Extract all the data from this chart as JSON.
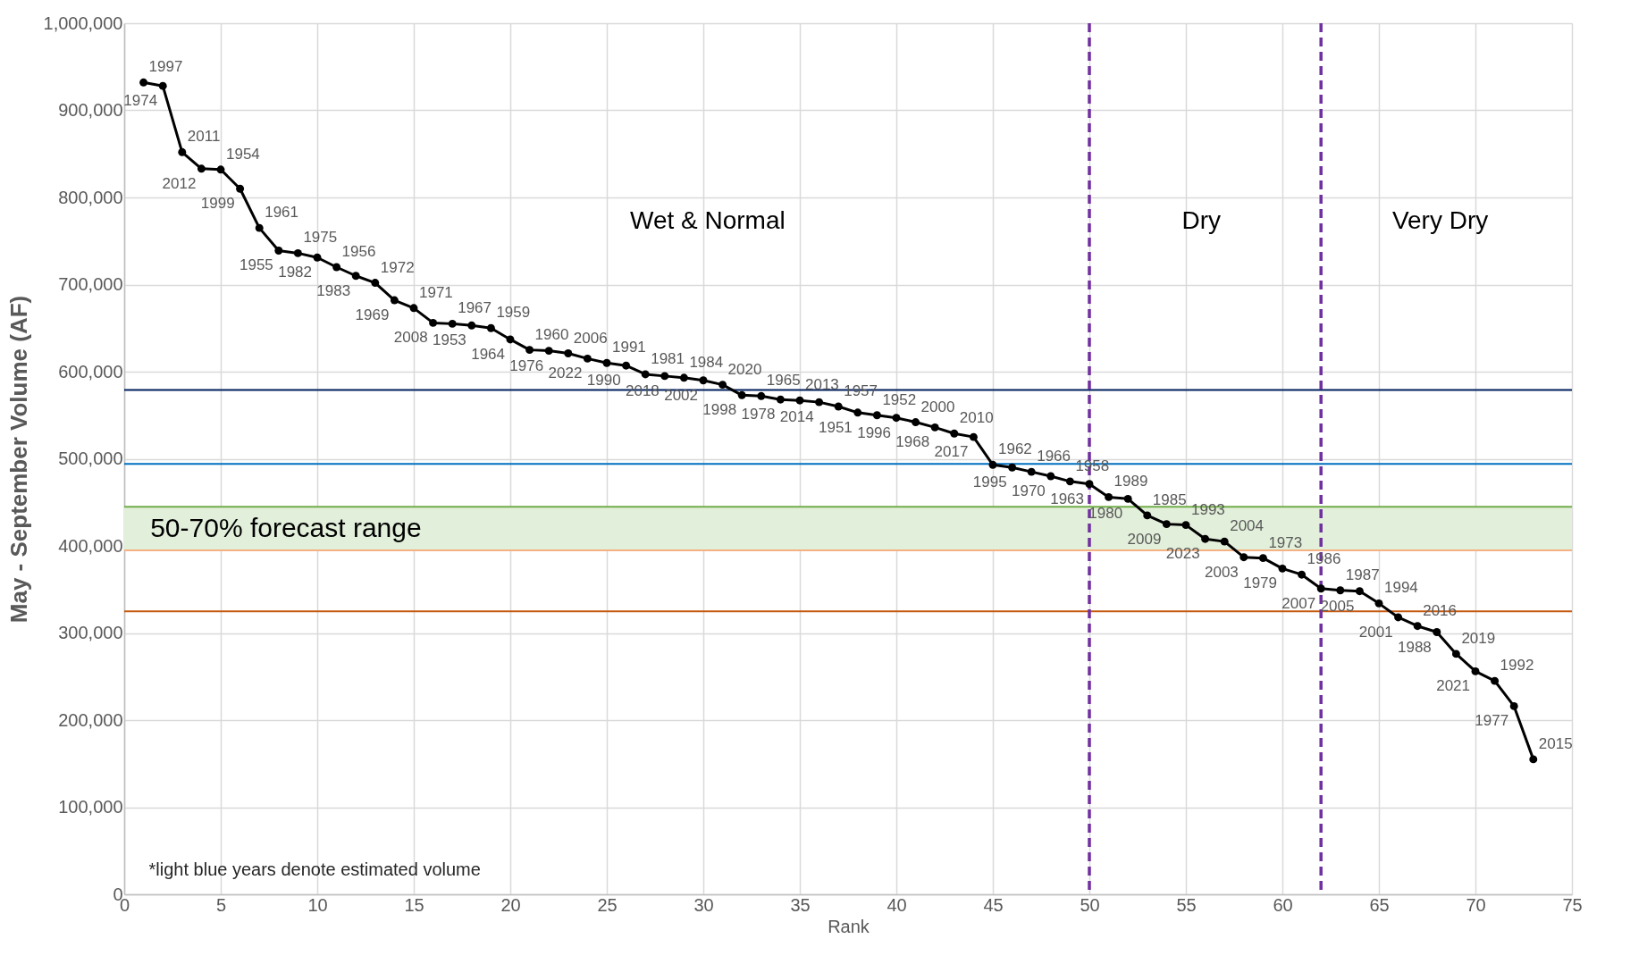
{
  "chart_data": {
    "type": "line",
    "xlabel": "Rank",
    "ylabel": "May - September Volume (AF)",
    "x": [
      1,
      2,
      3,
      4,
      5,
      6,
      7,
      8,
      9,
      10,
      11,
      12,
      13,
      14,
      15,
      16,
      17,
      18,
      19,
      20,
      21,
      22,
      23,
      24,
      25,
      26,
      27,
      28,
      29,
      30,
      31,
      32,
      33,
      34,
      35,
      36,
      37,
      38,
      39,
      40,
      41,
      42,
      43,
      44,
      45,
      46,
      47,
      48,
      49,
      50,
      51,
      52,
      53,
      54,
      55,
      56,
      57,
      58,
      59,
      60,
      61,
      62,
      63,
      64,
      65,
      66,
      67,
      68,
      69,
      70,
      71,
      72,
      73
    ],
    "series": [
      {
        "color": "#000000",
        "values": [
          932000,
          928000,
          852000,
          833000,
          832000,
          810000,
          765000,
          739000,
          736000,
          731000,
          720000,
          710000,
          702000,
          682000,
          673000,
          656000,
          655000,
          653000,
          650000,
          637000,
          625000,
          624000,
          621000,
          615000,
          610000,
          607000,
          597000,
          595000,
          593000,
          590000,
          585000,
          573000,
          572000,
          568000,
          567000,
          565000,
          560000,
          553000,
          550000,
          547000,
          542000,
          536000,
          529000,
          525000,
          493000,
          490000,
          485000,
          480000,
          474000,
          471000,
          456000,
          454000,
          435000,
          425000,
          424000,
          408000,
          405000,
          387000,
          386000,
          374000,
          367000,
          351000,
          349000,
          348000,
          334000,
          318000,
          308000,
          301000,
          276000,
          256000,
          245000,
          216000,
          155000
        ]
      }
    ],
    "xlim": [
      0,
      75
    ],
    "xticks": [
      0,
      5,
      10,
      15,
      20,
      25,
      30,
      35,
      40,
      45,
      50,
      55,
      60,
      65,
      70,
      75
    ],
    "ylim": [
      0,
      1000000
    ],
    "yticks": [
      0,
      {
        "value": 100000,
        "label": "100,000"
      },
      {
        "value": 200000,
        "label": "200,000"
      },
      {
        "value": 300000,
        "label": "300,000"
      },
      {
        "value": 400000,
        "label": "400,000"
      },
      {
        "value": 500000,
        "label": "500,000"
      },
      {
        "value": 600000,
        "label": "600,000"
      },
      {
        "value": 700000,
        "label": "700,000"
      },
      {
        "value": 800000,
        "label": "800,000"
      },
      {
        "value": 900000,
        "label": "900,000"
      },
      {
        "value": 1000000,
        "label": "1,000,000"
      }
    ],
    "grid": true,
    "marker": "circle",
    "line_style": "solid",
    "ref_lines": [
      {
        "axis": "y",
        "value": 579000,
        "color": "#002060"
      },
      {
        "axis": "y",
        "value": 494000,
        "color": "#0070c0"
      },
      {
        "axis": "y",
        "value": 445000,
        "color": "#70ad47"
      },
      {
        "axis": "y",
        "value": 395000,
        "color": "#f4b183"
      },
      {
        "axis": "y",
        "value": 325000,
        "color": "#c55a11"
      },
      {
        "axis": "x",
        "value": 50,
        "color": "#7030a0",
        "line_style": "dashed"
      },
      {
        "axis": "x",
        "value": 62,
        "color": "#7030a0",
        "line_style": "dashed"
      }
    ],
    "bands": [
      {
        "axis": "y",
        "from": 395000,
        "to": 445000,
        "label": "50-70% forecast range",
        "color": "#e2efda"
      }
    ],
    "annotations": [
      "Wet & Normal",
      "Dry",
      "Very Dry",
      "*light blue years denote estimated volume",
      {
        "text": "1997",
        "x": 1,
        "y": 932000
      },
      {
        "text": "1974",
        "x": 2,
        "y": 928000
      },
      {
        "text": "2011",
        "x": 3,
        "y": 852000
      },
      {
        "text": "2012",
        "x": 4,
        "y": 833000
      },
      {
        "text": "1954",
        "x": 5,
        "y": 832000
      },
      {
        "text": "1999",
        "x": 6,
        "y": 810000
      },
      {
        "text": "1961",
        "x": 7,
        "y": 765000
      },
      {
        "text": "1955",
        "x": 8,
        "y": 739000
      },
      {
        "text": "1975",
        "x": 9,
        "y": 736000
      },
      {
        "text": "1982",
        "x": 10,
        "y": 731000
      },
      {
        "text": "1956",
        "x": 11,
        "y": 720000
      },
      {
        "text": "1983",
        "x": 12,
        "y": 710000
      },
      {
        "text": "1972",
        "x": 13,
        "y": 702000
      },
      {
        "text": "1969",
        "x": 14,
        "y": 682000
      },
      {
        "text": "1971",
        "x": 15,
        "y": 673000
      },
      {
        "text": "2008",
        "x": 16,
        "y": 656000
      },
      {
        "text": "1967",
        "x": 17,
        "y": 655000
      },
      {
        "text": "1953",
        "x": 18,
        "y": 653000
      },
      {
        "text": "1959",
        "x": 19,
        "y": 650000
      },
      {
        "text": "1964",
        "x": 20,
        "y": 637000
      },
      {
        "text": "1960",
        "x": 21,
        "y": 625000
      },
      {
        "text": "1976",
        "x": 22,
        "y": 624000
      },
      {
        "text": "2006",
        "x": 23,
        "y": 621000
      },
      {
        "text": "2022",
        "x": 24,
        "y": 615000
      },
      {
        "text": "1991",
        "x": 25,
        "y": 610000
      },
      {
        "text": "1990",
        "x": 26,
        "y": 607000
      },
      {
        "text": "1981",
        "x": 27,
        "y": 597000
      },
      {
        "text": "2018",
        "x": 28,
        "y": 595000
      },
      {
        "text": "1984",
        "x": 29,
        "y": 593000
      },
      {
        "text": "2002",
        "x": 30,
        "y": 590000
      },
      {
        "text": "2020",
        "x": 31,
        "y": 585000
      },
      {
        "text": "1998",
        "x": 32,
        "y": 573000
      },
      {
        "text": "1965",
        "x": 33,
        "y": 572000
      },
      {
        "text": "1978",
        "x": 34,
        "y": 568000
      },
      {
        "text": "2013",
        "x": 35,
        "y": 567000
      },
      {
        "text": "2014",
        "x": 36,
        "y": 565000
      },
      {
        "text": "1957",
        "x": 37,
        "y": 560000
      },
      {
        "text": "1951",
        "x": 38,
        "y": 553000
      },
      {
        "text": "1952",
        "x": 39,
        "y": 550000
      },
      {
        "text": "1996",
        "x": 40,
        "y": 547000
      },
      {
        "text": "2000",
        "x": 41,
        "y": 542000
      },
      {
        "text": "1968",
        "x": 42,
        "y": 536000
      },
      {
        "text": "2010",
        "x": 43,
        "y": 529000
      },
      {
        "text": "2017",
        "x": 44,
        "y": 525000
      },
      {
        "text": "1962",
        "x": 45,
        "y": 493000
      },
      {
        "text": "1995",
        "x": 46,
        "y": 490000
      },
      {
        "text": "1966",
        "x": 47,
        "y": 485000
      },
      {
        "text": "1970",
        "x": 48,
        "y": 480000
      },
      {
        "text": "1958",
        "x": 49,
        "y": 474000
      },
      {
        "text": "1963",
        "x": 50,
        "y": 471000
      },
      {
        "text": "1989",
        "x": 51,
        "y": 456000
      },
      {
        "text": "1980",
        "x": 52,
        "y": 454000
      },
      {
        "text": "1985",
        "x": 53,
        "y": 435000
      },
      {
        "text": "2009",
        "x": 54,
        "y": 425000
      },
      {
        "text": "1993",
        "x": 55,
        "y": 424000
      },
      {
        "text": "2023",
        "x": 56,
        "y": 408000
      },
      {
        "text": "2004",
        "x": 57,
        "y": 405000
      },
      {
        "text": "2003",
        "x": 58,
        "y": 387000
      },
      {
        "text": "1973",
        "x": 59,
        "y": 386000
      },
      {
        "text": "1979",
        "x": 60,
        "y": 374000
      },
      {
        "text": "1986",
        "x": 61,
        "y": 367000
      },
      {
        "text": "2007",
        "x": 62,
        "y": 351000
      },
      {
        "text": "1987",
        "x": 63,
        "y": 349000
      },
      {
        "text": "2005",
        "x": 64,
        "y": 348000
      },
      {
        "text": "1994",
        "x": 65,
        "y": 334000
      },
      {
        "text": "2001",
        "x": 66,
        "y": 318000
      },
      {
        "text": "2016",
        "x": 67,
        "y": 308000
      },
      {
        "text": "1988",
        "x": 68,
        "y": 301000
      },
      {
        "text": "2019",
        "x": 69,
        "y": 276000
      },
      {
        "text": "2021",
        "x": 70,
        "y": 256000
      },
      {
        "text": "1992",
        "x": 71,
        "y": 245000
      },
      {
        "text": "1977",
        "x": 72,
        "y": 216000
      },
      {
        "text": "2015",
        "x": 73,
        "y": 155000
      }
    ]
  }
}
